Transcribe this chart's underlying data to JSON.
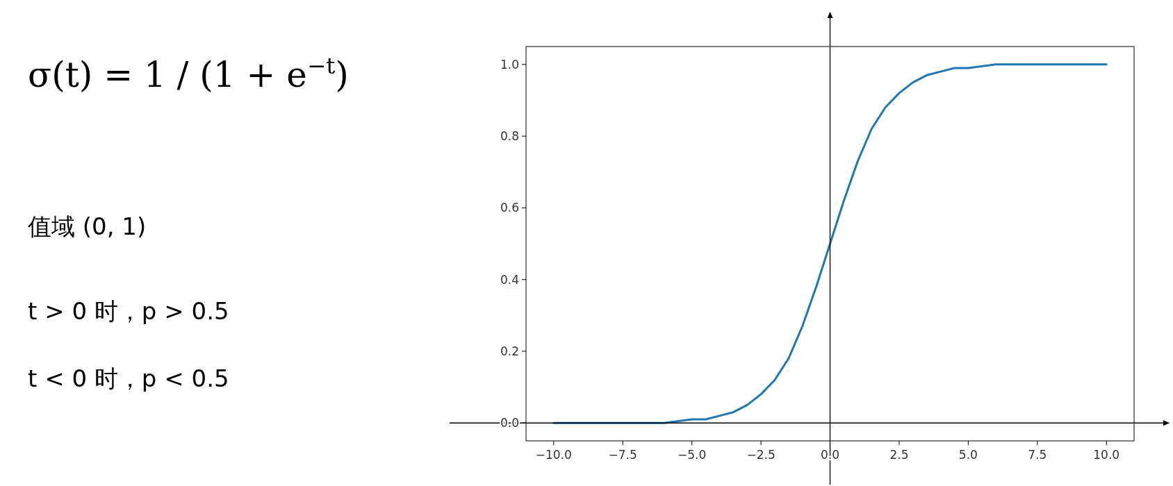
{
  "chart_data": {
    "type": "line",
    "x": [
      -10,
      -9,
      -8,
      -7,
      -6,
      -5,
      -4.5,
      -4,
      -3.5,
      -3,
      -2.5,
      -2,
      -1.5,
      -1,
      -0.5,
      0,
      0.5,
      1,
      1.5,
      2,
      2.5,
      3,
      3.5,
      4,
      4.5,
      5,
      6,
      7,
      8,
      9,
      10
    ],
    "series": [
      {
        "color": "#1f77b4",
        "values": [
          0.0,
          0.0,
          0.0,
          0.0,
          0.0,
          0.01,
          0.01,
          0.02,
          0.03,
          0.05,
          0.08,
          0.12,
          0.18,
          0.27,
          0.38,
          0.5,
          0.62,
          0.73,
          0.82,
          0.88,
          0.92,
          0.95,
          0.97,
          0.98,
          0.99,
          0.99,
          1.0,
          1.0,
          1.0,
          1.0,
          1.0
        ]
      }
    ],
    "xlim": [
      -11,
      11
    ],
    "ylim": [
      -0.05,
      1.05
    ],
    "xticks": [
      {
        "value": -10,
        "label": "−10.0"
      },
      {
        "value": -7.5,
        "label": "−7.5"
      },
      {
        "value": -5,
        "label": "−5.0"
      },
      {
        "value": -2.5,
        "label": "−2.5"
      },
      {
        "value": 0,
        "label": "0.0"
      },
      {
        "value": 2.5,
        "label": "2.5"
      },
      {
        "value": 5,
        "label": "5.0"
      },
      {
        "value": 7.5,
        "label": "7.5"
      },
      {
        "value": 10,
        "label": "10.0"
      }
    ],
    "yticks": [
      {
        "value": 0,
        "label": "0.0"
      },
      {
        "value": 0.2,
        "label": "0.2"
      },
      {
        "value": 0.4,
        "label": "0.4"
      },
      {
        "value": 0.6,
        "label": "0.6"
      },
      {
        "value": 0.8,
        "label": "0.8"
      },
      {
        "value": 1,
        "label": "1.0"
      }
    ],
    "grid": false,
    "marker": "none",
    "line_style": "solid",
    "ref_lines": [
      {
        "axis": "y",
        "value": 0,
        "color": "#000000"
      },
      {
        "axis": "x",
        "value": 0,
        "color": "#1a1a1a"
      }
    ],
    "annotations": [
      "σ(t) = 1 / (1 + e$^{−t}$)",
      "值域 (0, 1)",
      "t > 0 时，p > 0.5",
      "t < 0 时，p < 0.5"
    ]
  }
}
